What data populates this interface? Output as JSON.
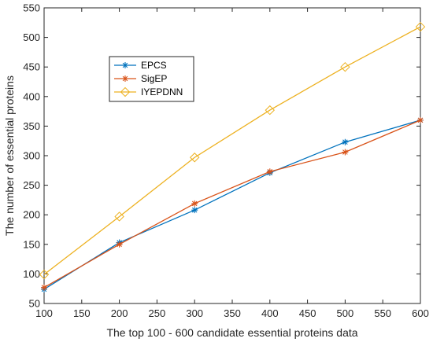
{
  "chart_data": {
    "type": "line",
    "title": "",
    "xlabel": "The top 100 - 600 candidate essential proteins data",
    "ylabel": "The number of essential proteins",
    "xlim": [
      100,
      600
    ],
    "ylim": [
      50,
      550
    ],
    "xticks": [
      100,
      150,
      200,
      250,
      300,
      350,
      400,
      450,
      500,
      550,
      600
    ],
    "yticks": [
      50,
      100,
      150,
      200,
      250,
      300,
      350,
      400,
      450,
      500,
      550
    ],
    "x": [
      100,
      200,
      300,
      400,
      500,
      600
    ],
    "grid": false,
    "legend_position": "top-left",
    "series": [
      {
        "name": "EPCS",
        "values": [
          74,
          153,
          208,
          271,
          323,
          360
        ],
        "color": "#0072bd",
        "marker": "asterisk"
      },
      {
        "name": "SigEP",
        "values": [
          77,
          150,
          219,
          273,
          306,
          360
        ],
        "color": "#d95319",
        "marker": "asterisk"
      },
      {
        "name": "IYEPDNN",
        "values": [
          99,
          197,
          297,
          377,
          450,
          518
        ],
        "color": "#edb120",
        "marker": "diamond"
      }
    ]
  }
}
